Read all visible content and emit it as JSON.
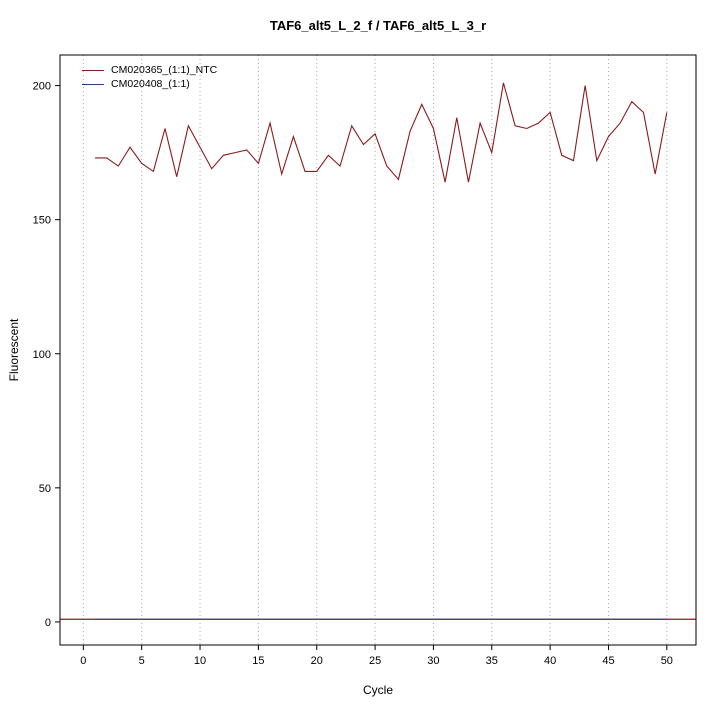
{
  "chart_data": {
    "type": "line",
    "title": "TAF6_alt5_L_2_f / TAF6_alt5_L_3_r",
    "xlabel": "Cycle",
    "ylabel": "Fluorescent",
    "xlim": [
      -2,
      52.5
    ],
    "ylim": [
      -8.6,
      211.4
    ],
    "x_ticks": [
      0,
      5,
      10,
      15,
      20,
      25,
      30,
      35,
      40,
      45,
      50
    ],
    "y_ticks": [
      0,
      50,
      100,
      150,
      200
    ],
    "grid": "vertical-dotted",
    "legend_position": "top-left",
    "x": [
      1,
      2,
      3,
      4,
      5,
      6,
      7,
      8,
      9,
      10,
      11,
      12,
      13,
      14,
      15,
      16,
      17,
      18,
      19,
      20,
      21,
      22,
      23,
      24,
      25,
      26,
      27,
      28,
      29,
      30,
      31,
      32,
      33,
      34,
      35,
      36,
      37,
      38,
      39,
      40,
      41,
      42,
      43,
      44,
      45,
      46,
      47,
      48,
      49,
      50
    ],
    "series": [
      {
        "name": "CM020365_(1:1)_NTC",
        "color": "#8b1a1a",
        "values": [
          173,
          173,
          170,
          177,
          171,
          168,
          184,
          166,
          185,
          177,
          169,
          174,
          175,
          176,
          171,
          186,
          167,
          181,
          168,
          168,
          174,
          170,
          185,
          178,
          182,
          170,
          165,
          183,
          193,
          184,
          164,
          188,
          164,
          186,
          175,
          201,
          185,
          184,
          186,
          190,
          174,
          172,
          200,
          172,
          181,
          186,
          194,
          190,
          167,
          190
        ]
      },
      {
        "name": "CM020408_(1:1)",
        "color": "#27408b",
        "values": [
          1,
          1,
          1,
          1,
          1,
          1,
          1,
          1,
          1,
          1,
          1,
          1,
          1,
          1,
          1,
          1,
          1,
          1,
          1,
          1,
          1,
          1,
          1,
          1,
          1,
          1,
          1,
          1,
          1,
          1,
          1,
          1,
          1,
          1,
          1,
          1,
          1,
          1,
          1,
          1,
          1,
          1,
          1,
          1,
          1,
          1,
          1,
          1,
          1,
          1
        ]
      }
    ],
    "baseline": {
      "y": 1,
      "color": "#8b1a1a",
      "full_width": true
    },
    "grid_color": "#a8a8a8",
    "axis_color": "#000000"
  }
}
